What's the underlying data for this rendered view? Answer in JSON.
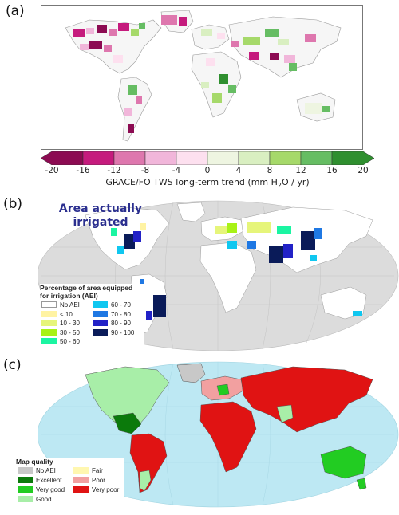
{
  "panel_a": {
    "label": "(a)",
    "colorbar": {
      "title_prefix": "GRACE/FO TWS long-term trend (mm H",
      "title_sub": "2",
      "title_suffix": "O / yr)",
      "ticks": [
        "-20",
        "-16",
        "-12",
        "-8",
        "-4",
        "0",
        "4",
        "8",
        "12",
        "16",
        "20"
      ],
      "colors": [
        "#8c0b52",
        "#c51b7d",
        "#de77ae",
        "#f1b6da",
        "#fde0ef",
        "#eef5e1",
        "#d9efc1",
        "#a6d96a",
        "#66bd63",
        "#2f8f2f"
      ]
    }
  },
  "panel_b": {
    "label": "(b)",
    "title_line1": "Area actually",
    "title_line2": "irrigated",
    "legend": {
      "title_line1": "Percentage of area equipped",
      "title_line2": "for irrigation (AEI)",
      "left": [
        {
          "label": "No AEI",
          "color": "#ffffff"
        },
        {
          "label": "< 10",
          "color": "#fff3a3"
        },
        {
          "label": "10 - 30",
          "color": "#e6f57a"
        },
        {
          "label": "30 - 50",
          "color": "#a8f216"
        },
        {
          "label": "50 - 60",
          "color": "#1bf5a2"
        }
      ],
      "right": [
        {
          "label": "60 - 70",
          "color": "#10c7f0"
        },
        {
          "label": "70 - 80",
          "color": "#1f78e3"
        },
        {
          "label": "80 - 90",
          "color": "#2222c7"
        },
        {
          "label": "90 - 100",
          "color": "#0a1b59"
        }
      ]
    }
  },
  "panel_c": {
    "label": "(c)",
    "legend": {
      "title": "Map quality",
      "left": [
        {
          "label": "No AEI",
          "color": "#c8c8c8"
        },
        {
          "label": "Excellent",
          "color": "#0b7a0b"
        },
        {
          "label": "Very good",
          "color": "#22cc22"
        },
        {
          "label": "Good",
          "color": "#a8eea8"
        }
      ],
      "right": [
        {
          "label": "Fair",
          "color": "#fff7b0"
        },
        {
          "label": "Poor",
          "color": "#f2a0a0"
        },
        {
          "label": "Very poor",
          "color": "#e01313"
        }
      ]
    }
  }
}
